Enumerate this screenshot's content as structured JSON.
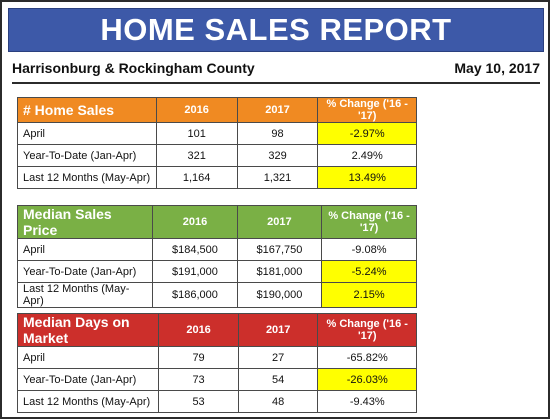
{
  "banner": {
    "title": "HOME SALES REPORT"
  },
  "subhead": {
    "area": "Harrisonburg & Rockingham County",
    "date": "May 10, 2017"
  },
  "tables": [
    {
      "title": "# Home Sales",
      "col_2016": "2016",
      "col_2017": "2017",
      "col_change": "% Change ('16 - '17)",
      "rows": [
        {
          "label": "April",
          "v2016": "101",
          "v2017": "98",
          "change": "-2.97%"
        },
        {
          "label": "Year-To-Date (Jan-Apr)",
          "v2016": "321",
          "v2017": "329",
          "change": "2.49%"
        },
        {
          "label": "Last 12 Months (May-Apr)",
          "v2016": "1,164",
          "v2017": "1,321",
          "change": "13.49%"
        }
      ]
    },
    {
      "title": "Median Sales Price",
      "col_2016": "2016",
      "col_2017": "2017",
      "col_change": "% Change ('16 - '17)",
      "rows": [
        {
          "label": "April",
          "v2016": "$184,500",
          "v2017": "$167,750",
          "change": "-9.08%"
        },
        {
          "label": "Year-To-Date (Jan-Apr)",
          "v2016": "$191,000",
          "v2017": "$181,000",
          "change": "-5.24%"
        },
        {
          "label": "Last 12 Months (May-Apr)",
          "v2016": "$186,000",
          "v2017": "$190,000",
          "change": "2.15%"
        }
      ]
    },
    {
      "title": "Median Days on Market",
      "col_2016": "2016",
      "col_2017": "2017",
      "col_change": "% Change ('16 - '17)",
      "rows": [
        {
          "label": "April",
          "v2016": "79",
          "v2017": "27",
          "change": "-65.82%"
        },
        {
          "label": "Year-To-Date (Jan-Apr)",
          "v2016": "73",
          "v2017": "54",
          "change": "-26.03%"
        },
        {
          "label": "Last 12 Months (May-Apr)",
          "v2016": "53",
          "v2017": "48",
          "change": "-9.43%"
        }
      ]
    }
  ],
  "colors": {
    "banner": "#3d59a8",
    "orange": "#f08a22",
    "green": "#7ab045",
    "red": "#cc2f2b",
    "highlight": "#ffff00"
  }
}
